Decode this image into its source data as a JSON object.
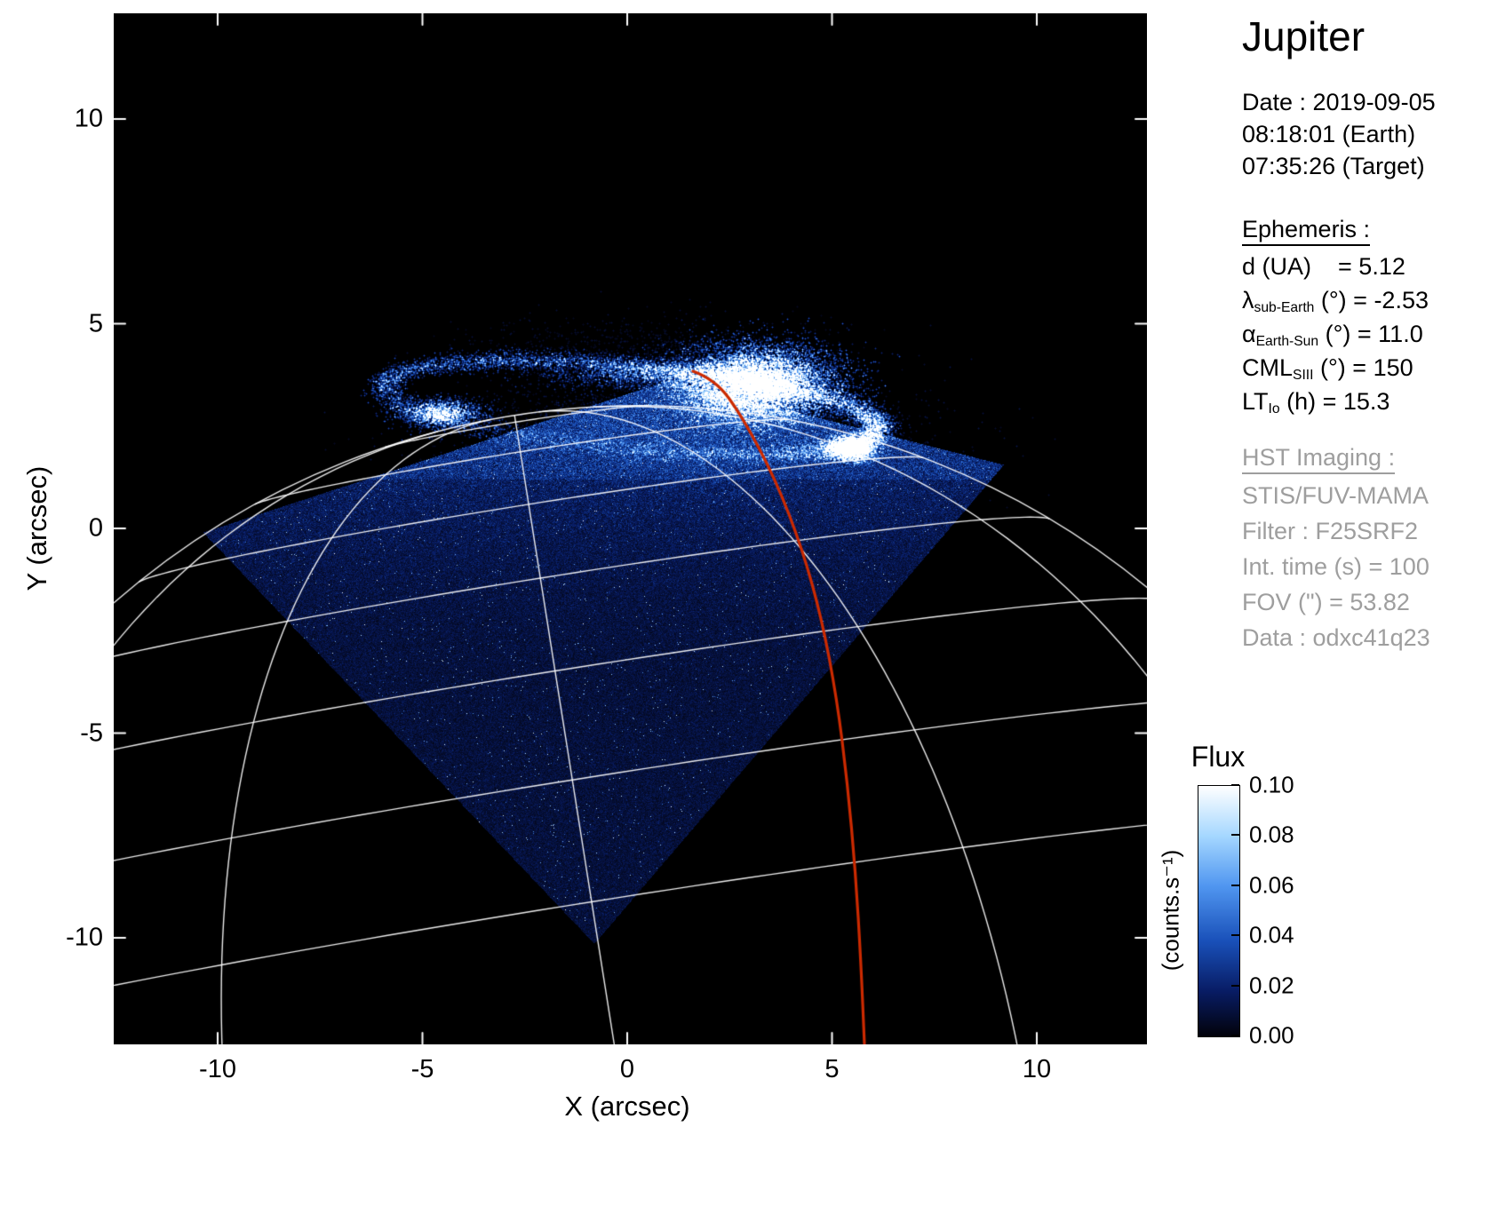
{
  "title": "Jupiter",
  "observation": {
    "date_label": "Date : 2019-09-05",
    "time_earth": "08:18:01 (Earth)",
    "time_target": "07:35:26 (Target)"
  },
  "ephemeris": {
    "heading": "Ephemeris :",
    "rows": [
      {
        "pre": "d",
        "sub": "",
        "post": " (UA)    = 5.12"
      },
      {
        "pre": "λ",
        "sub": "sub-Earth",
        "post": " (°) = -2.53"
      },
      {
        "pre": "α",
        "sub": "Earth-Sun",
        "post": " (°) = 11.0"
      },
      {
        "pre": "CML",
        "sub": "SIII",
        "post": " (°) = 150"
      },
      {
        "pre": "LT",
        "sub": "Io",
        "post": " (h) = 15.3"
      }
    ]
  },
  "imaging": {
    "heading": "HST Imaging :",
    "rows": [
      "STIS/FUV-MAMA",
      "Filter : F25SRF2",
      "Int. time (s) = 100",
      "FOV (\") = 53.82",
      "Data : odxc41q23"
    ]
  },
  "colorbar": {
    "title": "Flux",
    "units": "(counts.s⁻¹)",
    "ticks": [
      "0.10",
      "0.08",
      "0.06",
      "0.04",
      "0.02",
      "0.00"
    ],
    "range": [
      0.0,
      0.1
    ]
  },
  "axes": {
    "x": {
      "label": "X (arcsec)",
      "ticks": [
        "-10",
        "-5",
        "0",
        "5",
        "10"
      ],
      "tick_values": [
        -10,
        -5,
        0,
        5,
        10
      ]
    },
    "y": {
      "label": "Y (arcsec)",
      "ticks": [
        "10",
        "5",
        "0",
        "-5",
        "-10"
      ],
      "tick_values": [
        10,
        5,
        0,
        -5,
        -10
      ]
    }
  },
  "plot": {
    "background": "#000000",
    "grid_white": "rgba(255,255,255,0.92)",
    "accent_red": "#cc2a00"
  },
  "chart_data": {
    "type": "heatmap",
    "title": "Jupiter",
    "description": "HST/STIS far-ultraviolet image of Jupiter's northern aurora: bright auroral oval and polar emission at top, noisy blue detector field (rotated-square FOV), white planetocentric graticule and red meridian track overlaid.",
    "xlabel": "X (arcsec)",
    "ylabel": "Y (arcsec)",
    "xlim": [
      -12.5,
      12.7
    ],
    "ylim": [
      -12.6,
      12.6
    ],
    "x_ticks": [
      -10,
      -5,
      0,
      5,
      10
    ],
    "y_ticks": [
      10,
      5,
      0,
      -5,
      -10
    ],
    "flux_units": "counts.s⁻¹",
    "flux_range": [
      0.0,
      0.1
    ],
    "colorbar_ticks": [
      0.0,
      0.02,
      0.04,
      0.06,
      0.08,
      0.1
    ],
    "overlays": [
      {
        "name": "planetocentric-graticule",
        "color": "#ffffff"
      },
      {
        "name": "red-meridian-track",
        "color": "#cc2a00"
      }
    ],
    "features": [
      {
        "name": "main-auroral-oval",
        "x_arcsec_range": [
          -6.2,
          6.5
        ],
        "y_arcsec_range": [
          1.6,
          4.4
        ]
      },
      {
        "name": "bright-polar-emission-core",
        "center_arcsec": [
          3.1,
          3.5
        ]
      },
      {
        "name": "left-oval-knot",
        "center_arcsec": [
          -4.6,
          2.8
        ]
      },
      {
        "name": "footprint-bright-spot",
        "center_arcsec": [
          5.45,
          1.95
        ]
      },
      {
        "name": "detector-field",
        "shape": "rotated-square",
        "corners_arcsec": [
          [
            -10.35,
            -0.1
          ],
          [
            1.05,
            3.62
          ],
          [
            9.2,
            1.55
          ],
          [
            -0.8,
            -10.15
          ]
        ]
      }
    ],
    "ephemeris_values": {
      "d_UA": 5.12,
      "lambda_sub_earth_deg": -2.53,
      "alpha_earth_sun_deg": 11.0,
      "CML_SIII_deg": 150,
      "LT_Io_h": 15.3
    },
    "instrument": {
      "name": "STIS/FUV-MAMA",
      "filter": "F25SRF2",
      "int_time_s": 100,
      "fov_arcsec": 53.82,
      "data_id": "odxc41q23"
    }
  }
}
